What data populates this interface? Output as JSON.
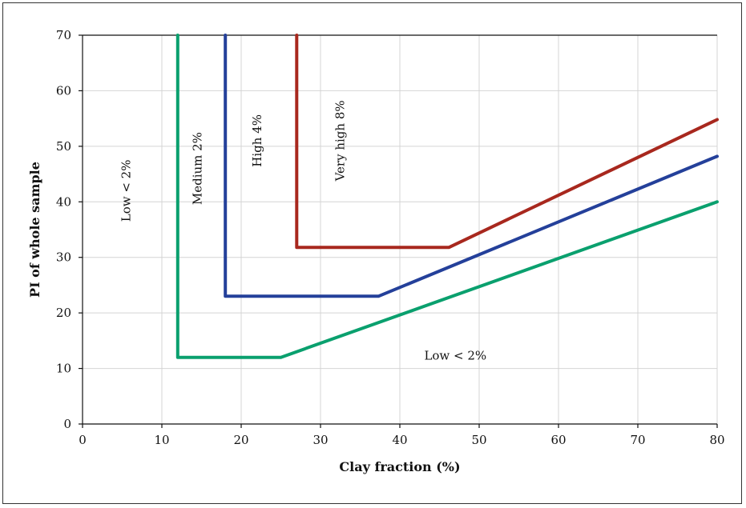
{
  "chart_data": {
    "type": "line",
    "xlabel": "Clay fraction (%)",
    "ylabel": "PI of whole sample",
    "xlim": [
      0,
      80
    ],
    "ylim": [
      0,
      70
    ],
    "x_ticks": [
      0,
      10,
      20,
      30,
      40,
      50,
      60,
      70,
      80
    ],
    "y_ticks": [
      0,
      10,
      20,
      30,
      40,
      50,
      60,
      70
    ],
    "grid": true,
    "series": [
      {
        "color": "#0aa06e",
        "points": [
          [
            12,
            70
          ],
          [
            12,
            12
          ],
          [
            25,
            12
          ],
          [
            80,
            40
          ]
        ]
      },
      {
        "color": "#24409a",
        "points": [
          [
            18,
            70
          ],
          [
            18,
            23
          ],
          [
            37.3,
            23
          ],
          [
            80,
            48.2
          ]
        ]
      },
      {
        "color": "#a8281e",
        "points": [
          [
            27,
            70
          ],
          [
            27,
            31.8
          ],
          [
            46.2,
            31.8
          ],
          [
            80,
            54.8
          ]
        ]
      }
    ],
    "annotations": [
      {
        "text": "Low < 2%",
        "x": 6,
        "y": 42,
        "rotate": -90
      },
      {
        "text": "Medium 2%",
        "x": 15,
        "y": 46,
        "rotate": -90
      },
      {
        "text": "High 4%",
        "x": 22.5,
        "y": 51,
        "rotate": -90
      },
      {
        "text": "Very high 8%",
        "x": 33,
        "y": 51,
        "rotate": -90
      },
      {
        "text": "Low < 2%",
        "x": 47,
        "y": 11.6,
        "rotate": 0
      }
    ]
  }
}
